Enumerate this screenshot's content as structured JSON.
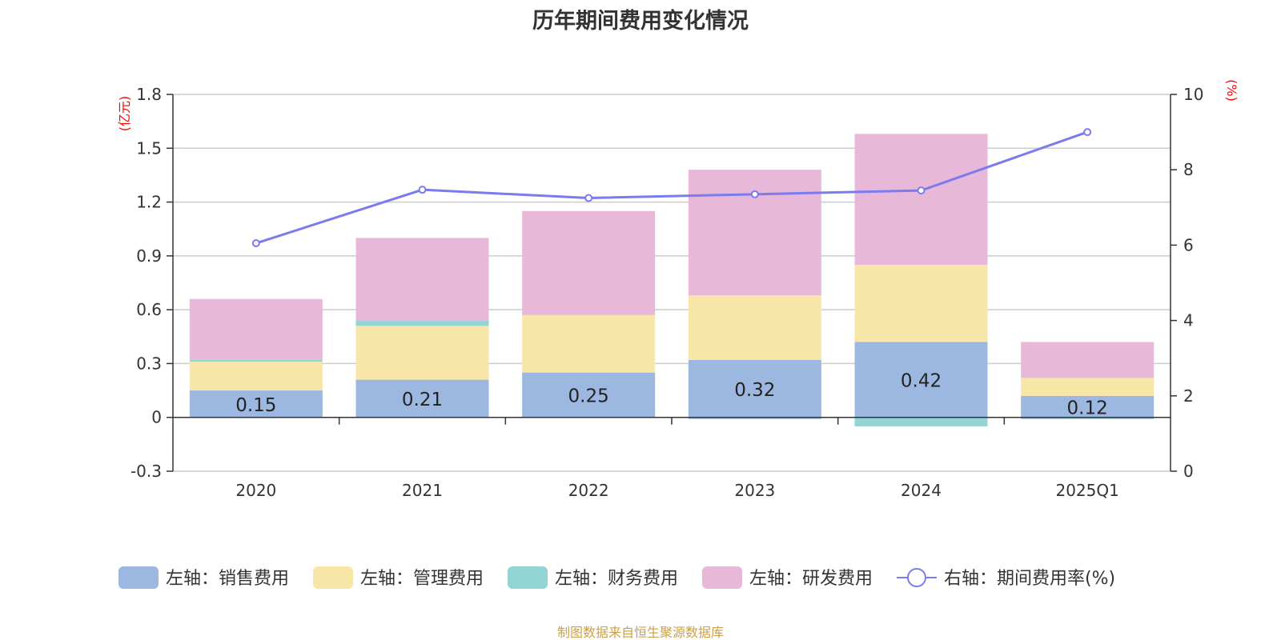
{
  "title": "历年期间费用变化情况",
  "source_note": "制图数据来自恒生聚源数据库",
  "chart_data": {
    "type": "bar",
    "stacked": true,
    "categories": [
      "2020",
      "2021",
      "2022",
      "2023",
      "2024",
      "2025Q1"
    ],
    "left_axis": {
      "unit": "(亿元)",
      "ylim": [
        -0.3,
        1.8
      ],
      "ticks": [
        "-0.3",
        "0",
        "0.3",
        "0.6",
        "0.9",
        "1.2",
        "1.5",
        "1.8"
      ]
    },
    "right_axis": {
      "unit": "(%)",
      "ylim": [
        0,
        10
      ],
      "ticks": [
        "0",
        "2",
        "4",
        "6",
        "8",
        "10"
      ]
    },
    "grid": true,
    "legend_position": "bottom",
    "series": [
      {
        "name": "左轴：销售费用",
        "axis": "left",
        "color": "#9cb7e0",
        "values": [
          0.15,
          0.21,
          0.25,
          0.32,
          0.42,
          0.12
        ],
        "labels": [
          "0.15",
          "0.21",
          "0.25",
          "0.32",
          "0.42",
          "0.12"
        ]
      },
      {
        "name": "左轴：管理费用",
        "axis": "left",
        "color": "#f8e6a8",
        "values": [
          0.16,
          0.3,
          0.32,
          0.36,
          0.43,
          0.1
        ]
      },
      {
        "name": "左轴：财务费用",
        "axis": "left",
        "color": "#93d4d4",
        "values": [
          0.01,
          0.03,
          0.0,
          -0.01,
          -0.05,
          -0.01
        ]
      },
      {
        "name": "左轴：研发费用",
        "axis": "left",
        "color": "#e8b8d8",
        "values": [
          0.34,
          0.46,
          0.58,
          0.7,
          0.73,
          0.2
        ]
      },
      {
        "name": "右轴：期间费用率(%)",
        "axis": "right",
        "type": "line",
        "color": "#7b7bf0",
        "values": [
          6.05,
          7.47,
          7.25,
          7.35,
          7.45,
          9.0
        ]
      }
    ]
  }
}
